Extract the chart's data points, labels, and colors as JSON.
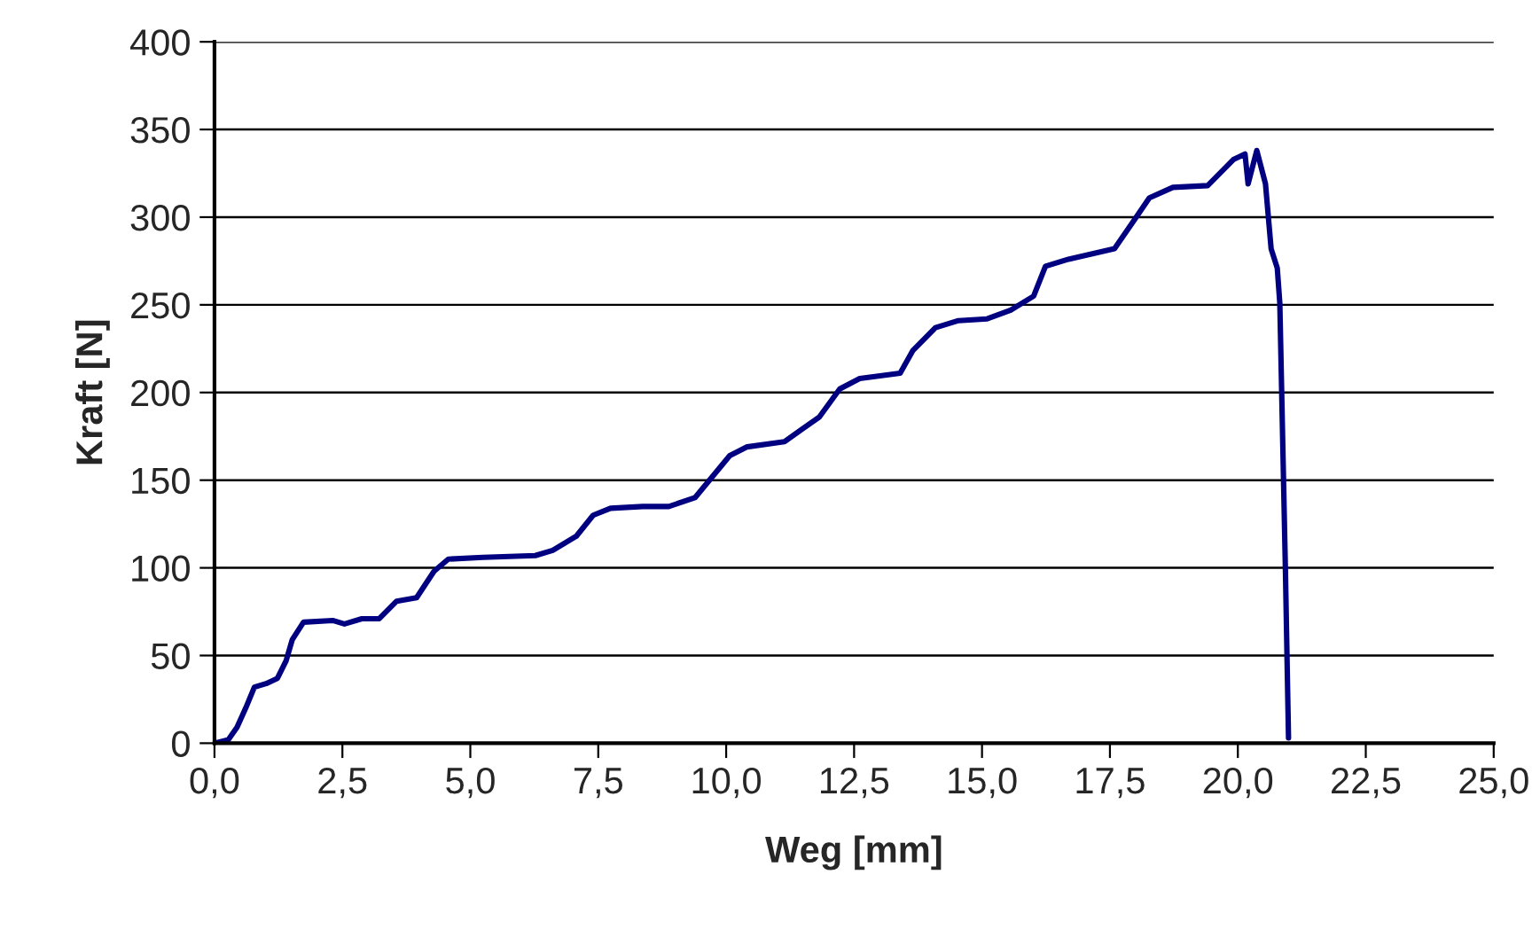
{
  "chart_data": {
    "type": "line",
    "xlabel": "Weg [mm]",
    "ylabel": "Kraft [N]",
    "xlim": [
      0,
      25
    ],
    "ylim": [
      0,
      400
    ],
    "xticks": [
      {
        "value": 0,
        "label": "0,0"
      },
      {
        "value": 2.5,
        "label": "2,5"
      },
      {
        "value": 5,
        "label": "5,0"
      },
      {
        "value": 7.5,
        "label": "7,5"
      },
      {
        "value": 10,
        "label": "10,0"
      },
      {
        "value": 12.5,
        "label": "12,5"
      },
      {
        "value": 15,
        "label": "15,0"
      },
      {
        "value": 17.5,
        "label": "17,5"
      },
      {
        "value": 20,
        "label": "20,0"
      },
      {
        "value": 22.5,
        "label": "22,5"
      },
      {
        "value": 25,
        "label": "25,0"
      }
    ],
    "yticks": [
      0,
      50,
      100,
      150,
      200,
      250,
      300,
      350,
      400
    ],
    "grid": "y",
    "legend": false,
    "marker": "none",
    "line_style": "solid",
    "series": [
      {
        "color": "#000080",
        "x": [
          0,
          0.27,
          0.44,
          0.61,
          0.78,
          1.01,
          1.23,
          1.4,
          1.52,
          1.74,
          2.31,
          2.54,
          2.88,
          3.22,
          3.56,
          3.95,
          4.29,
          4.57,
          5.25,
          6.27,
          6.61,
          7.07,
          7.4,
          7.74,
          8.37,
          8.88,
          9.39,
          9.73,
          10.07,
          10.41,
          11.14,
          11.48,
          11.82,
          12.22,
          12.61,
          13.4,
          13.65,
          14.09,
          14.54,
          15.1,
          15.56,
          16.01,
          16.24,
          16.69,
          17.59,
          17.99,
          18.27,
          18.73,
          19.41,
          19.92,
          20.14,
          20.2,
          20.37,
          20.54,
          20.65,
          20.77,
          20.82,
          20.93,
          20.99
        ],
        "values": [
          0,
          2,
          9,
          20,
          32,
          34,
          37,
          47,
          59,
          69,
          70,
          68,
          71,
          71,
          81,
          83,
          98,
          105,
          106,
          107,
          110,
          118,
          130,
          134,
          135,
          135,
          140,
          152,
          164,
          169,
          172,
          179,
          186,
          202,
          208,
          211,
          224,
          237,
          241,
          242,
          247,
          255,
          272,
          276,
          282,
          299,
          311,
          317,
          318,
          333,
          336,
          319,
          338,
          319,
          282,
          271,
          251,
          98,
          3
        ]
      }
    ]
  }
}
